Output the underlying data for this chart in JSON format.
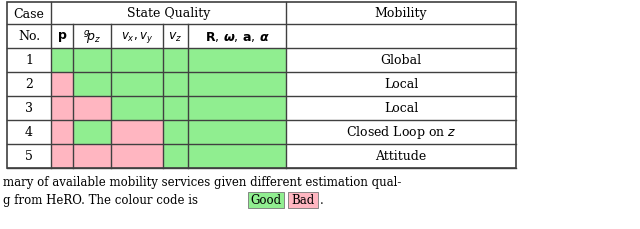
{
  "good_color": "#90EE90",
  "bad_color": "#FFB6C1",
  "white_color": "#FFFFFF",
  "grid_color": "#404040",
  "fig_bg": "#FFFFFF",
  "case_labels": [
    "1",
    "2",
    "3",
    "4",
    "5"
  ],
  "mobility_labels": [
    "Global",
    "Local",
    "Local",
    "Closed Loop on $z$",
    "Attitude"
  ],
  "caption_line1": "mary of available mobility services given different estimation qual-",
  "caption_line2": "g from HeRO. The colour code is",
  "good_label": "Good",
  "bad_label": "Bad",
  "cell_colors": [
    [
      "good",
      "good",
      "good",
      "good",
      "good"
    ],
    [
      "bad",
      "good",
      "good",
      "good",
      "good"
    ],
    [
      "bad",
      "bad",
      "good",
      "good",
      "good"
    ],
    [
      "bad",
      "good",
      "bad",
      "good",
      "good"
    ],
    [
      "bad",
      "bad",
      "bad",
      "good",
      "good"
    ]
  ]
}
